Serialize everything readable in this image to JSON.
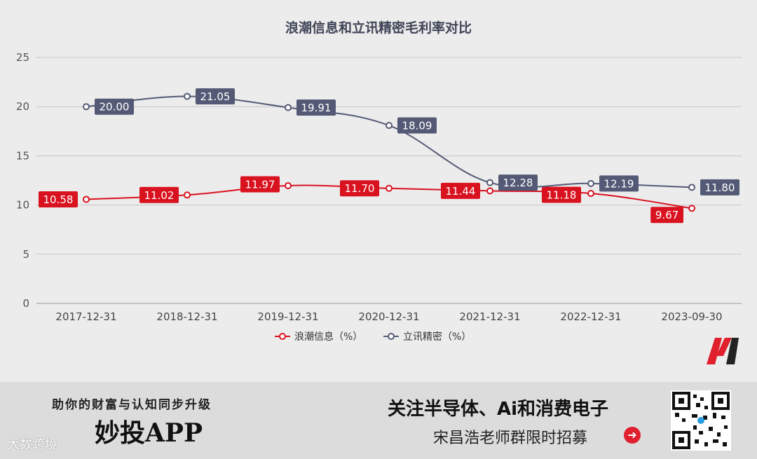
{
  "chart_data": {
    "type": "line",
    "title": "浪潮信息和立讯精密毛利率对比",
    "categories": [
      "2017-12-31",
      "2018-12-31",
      "2019-12-31",
      "2020-12-31",
      "2021-12-31",
      "2022-12-31",
      "2023-09-30"
    ],
    "ylim": [
      0,
      25
    ],
    "yticks": [
      0,
      5,
      10,
      15,
      20,
      25
    ],
    "grid": true,
    "legend_position": "bottom",
    "series": [
      {
        "name": "浪潮信息（%）",
        "color": "#d9121f",
        "values": [
          10.58,
          11.02,
          11.97,
          11.7,
          11.44,
          11.18,
          9.67
        ],
        "labels": [
          "10.58",
          "11.02",
          "11.97",
          "11.70",
          "11.44",
          "11.18",
          "9.67"
        ]
      },
      {
        "name": "立讯精密（%）",
        "color": "#545a75",
        "values": [
          20.0,
          21.05,
          19.91,
          18.09,
          12.28,
          12.19,
          11.8
        ],
        "labels": [
          "20.00",
          "21.05",
          "19.91",
          "18.09",
          "12.28",
          "12.19",
          "11.80"
        ]
      }
    ]
  },
  "banner": {
    "slogan": "助你的财富与认知同步升级",
    "app_name": "妙投APP",
    "headline": "关注半导体、Ai和消费电子",
    "subline": "宋昌浩老师群限时招募",
    "watermark": "大数跨境"
  },
  "icons": {
    "brand_logo": "m-logo-icon",
    "qr": "qr-code-icon",
    "arrow": "arrow-right-circle-icon"
  }
}
